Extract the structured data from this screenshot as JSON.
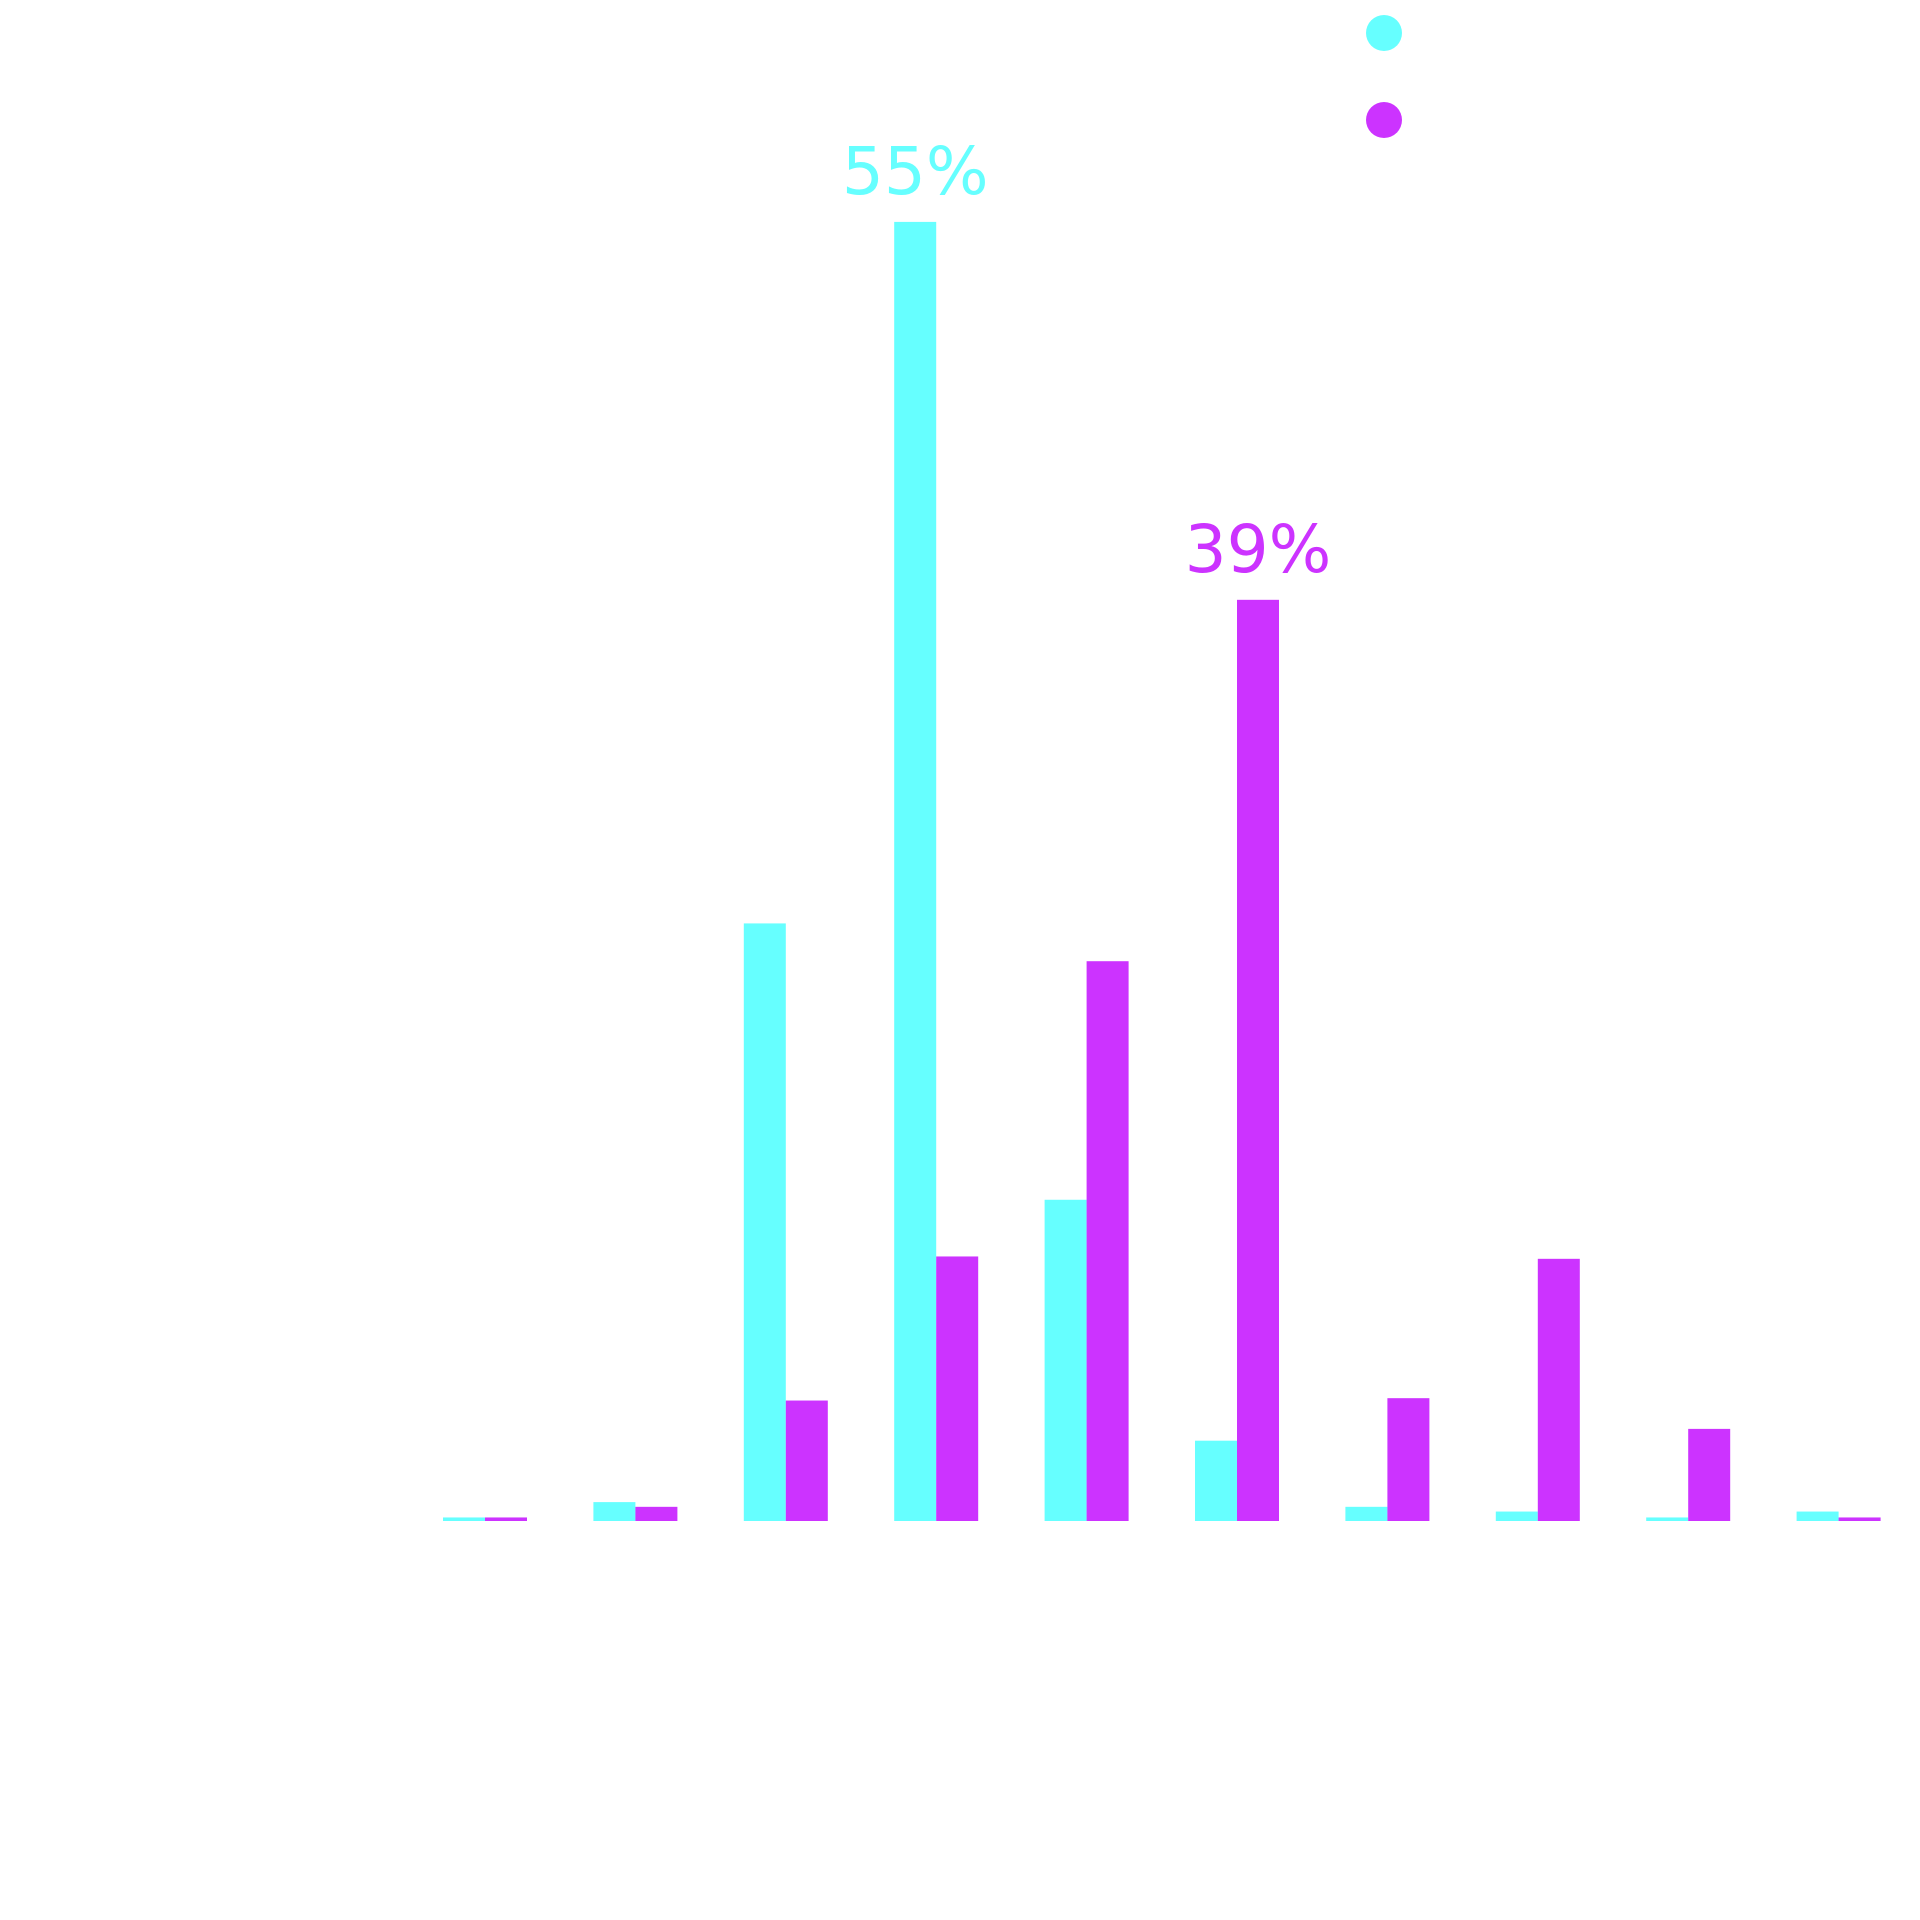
{
  "chart_data": {
    "type": "bar",
    "categories": [
      null,
      null,
      null,
      null,
      null,
      null,
      null,
      null,
      null,
      null
    ],
    "series": [
      {
        "color": "#66ffff",
        "values": [
          0.15,
          0.8,
          25.3,
          55,
          13.6,
          3.4,
          0.6,
          0.4,
          0.15,
          0.4
        ],
        "value_labels": [
          null,
          null,
          null,
          "55%",
          null,
          null,
          null,
          null,
          null,
          null
        ]
      },
      {
        "color": "#cc33ff",
        "values": [
          0.15,
          0.6,
          5.1,
          11.2,
          23.7,
          39,
          5.2,
          11.1,
          3.9,
          0.15
        ],
        "value_labels": [
          null,
          null,
          null,
          null,
          null,
          "39%",
          null,
          null,
          null,
          null
        ]
      }
    ],
    "ylim": [
      0,
      60
    ]
  }
}
